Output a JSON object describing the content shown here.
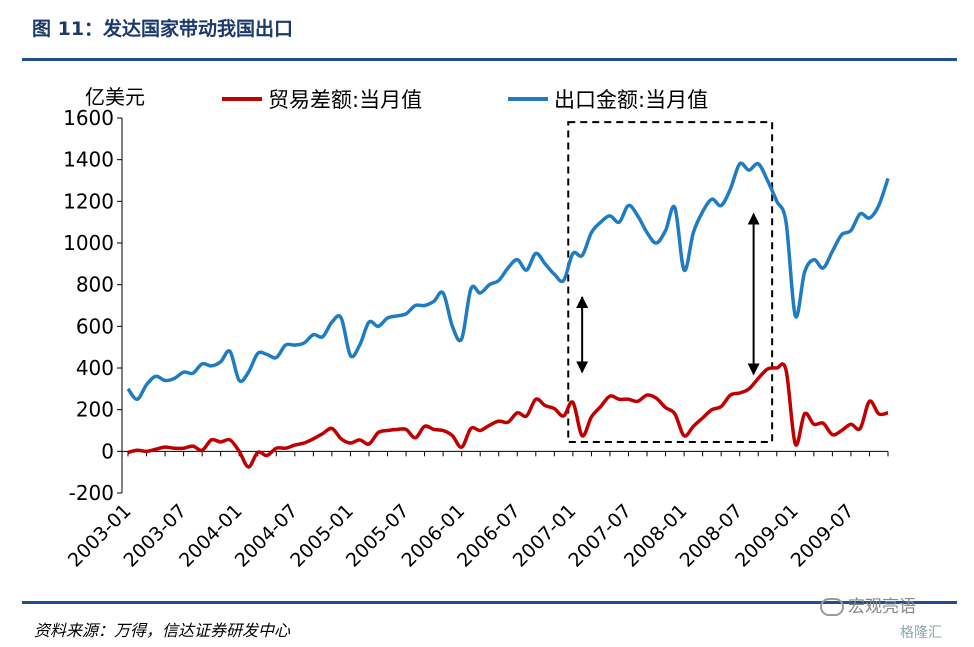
{
  "header": {
    "title": "图 11：发达国家带动我国出口"
  },
  "footer": {
    "source": "资料来源：万得，信达证券研发中心",
    "watermark": "宏观亮语",
    "watermark2": "格隆汇"
  },
  "colors": {
    "trade_balance": "#c00000",
    "exports": "#1f7cc2",
    "rule": "#1f4e8c"
  },
  "chart_data": {
    "type": "line",
    "ylabel": "亿美元",
    "ylim": [
      -200,
      1600
    ],
    "yticks": [
      -200,
      0,
      200,
      400,
      600,
      800,
      1000,
      1200,
      1400,
      1600
    ],
    "xtick_labels": [
      "2003-01",
      "2003-07",
      "2004-01",
      "2004-07",
      "2005-01",
      "2005-07",
      "2006-01",
      "2006-07",
      "2007-01",
      "2007-07",
      "2008-01",
      "2008-07",
      "2009-01",
      "2009-07"
    ],
    "xtick_months": [
      0,
      6,
      12,
      18,
      24,
      30,
      36,
      42,
      48,
      54,
      60,
      66,
      72,
      78
    ],
    "legend_position": "top",
    "grid": false,
    "series": [
      {
        "name": "贸易差额:当月值",
        "values": [
          -5,
          5,
          0,
          10,
          20,
          15,
          15,
          25,
          5,
          55,
          45,
          55,
          0,
          -75,
          -5,
          -20,
          15,
          15,
          30,
          40,
          60,
          85,
          110,
          60,
          40,
          55,
          35,
          90,
          100,
          105,
          105,
          65,
          120,
          105,
          100,
          75,
          20,
          110,
          100,
          125,
          145,
          140,
          185,
          170,
          250,
          220,
          205,
          170,
          235,
          75,
          165,
          215,
          265,
          250,
          250,
          240,
          270,
          255,
          210,
          180,
          75,
          120,
          160,
          200,
          215,
          270,
          280,
          300,
          350,
          395,
          400,
          390,
          35,
          180,
          130,
          135,
          80,
          100,
          130,
          110,
          240,
          180,
          185
        ]
      },
      {
        "name": "出口金额:当月值",
        "values": [
          300,
          250,
          320,
          360,
          340,
          350,
          380,
          375,
          420,
          410,
          430,
          480,
          340,
          380,
          470,
          465,
          450,
          510,
          510,
          520,
          560,
          550,
          620,
          640,
          460,
          510,
          620,
          600,
          640,
          650,
          660,
          700,
          700,
          720,
          760,
          600,
          540,
          780,
          760,
          800,
          820,
          880,
          920,
          870,
          950,
          900,
          850,
          820,
          950,
          940,
          1050,
          1100,
          1130,
          1100,
          1180,
          1130,
          1050,
          1000,
          1060,
          1170,
          870,
          1050,
          1150,
          1210,
          1180,
          1260,
          1380,
          1350,
          1380,
          1300,
          1200,
          1100,
          650,
          860,
          920,
          880,
          960,
          1040,
          1060,
          1140,
          1120,
          1180,
          1310
        ]
      }
    ],
    "annotation_box": {
      "x_start": 47.5,
      "x_end": 69.5,
      "y_min": 45,
      "y_max": 1580
    },
    "arrows": [
      {
        "x": 49,
        "y_from": 380,
        "y_to": 740
      },
      {
        "x": 67.5,
        "y_from": 370,
        "y_to": 1140
      }
    ]
  }
}
